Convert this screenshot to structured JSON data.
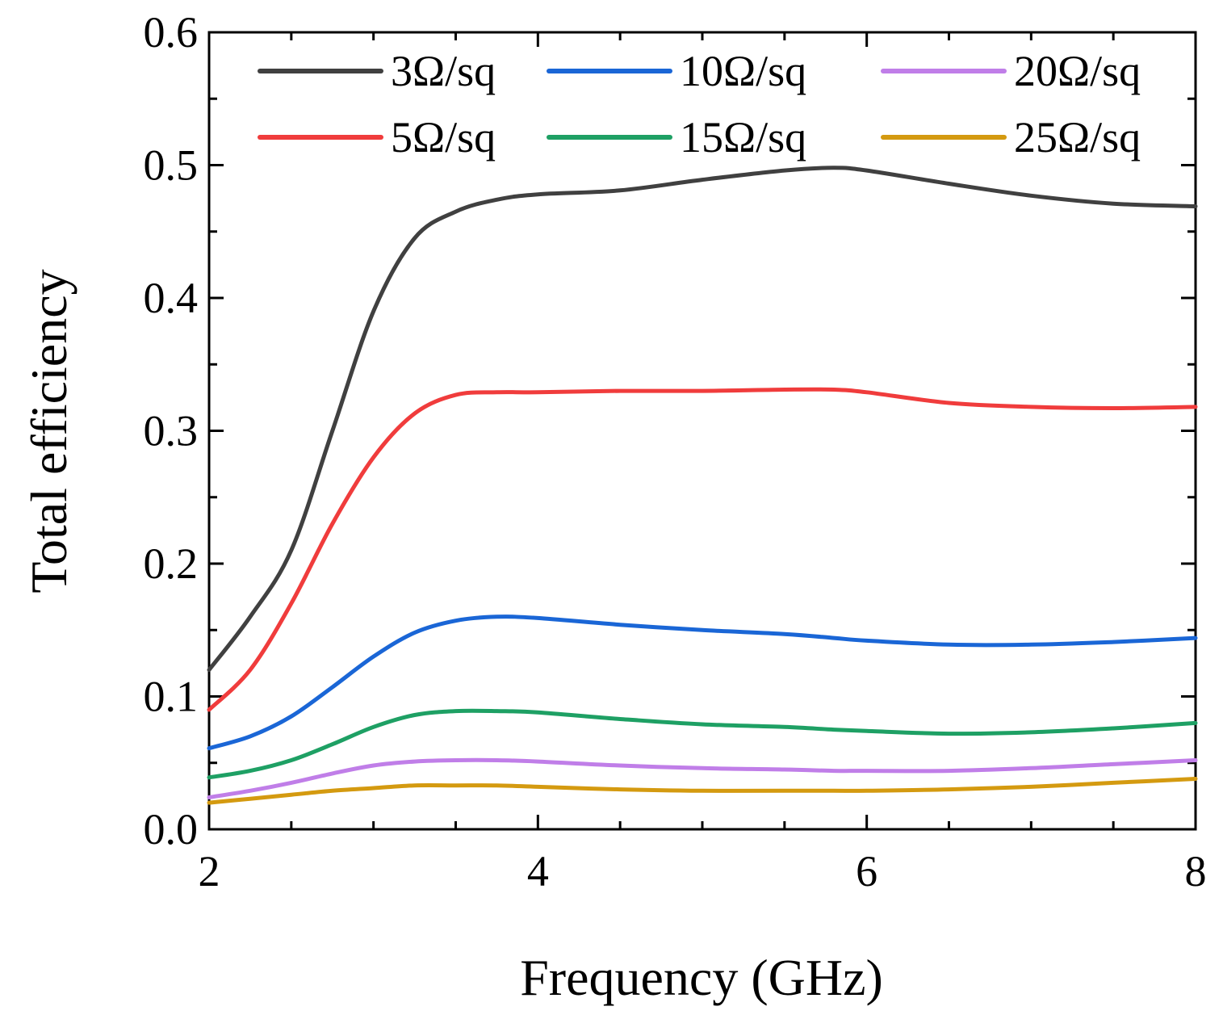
{
  "chart_data": {
    "type": "line",
    "title": "",
    "xlabel": "Frequency (GHz)",
    "ylabel": "Total efficiency",
    "xlim": [
      2,
      8
    ],
    "ylim": [
      0.0,
      0.6
    ],
    "xticks": [
      2,
      4,
      6,
      8
    ],
    "xtick_labels": [
      "2",
      "4",
      "6",
      "8"
    ],
    "yticks": [
      0.0,
      0.1,
      0.2,
      0.3,
      0.4,
      0.5,
      0.6
    ],
    "ytick_labels": [
      "0.0",
      "0.1",
      "0.2",
      "0.3",
      "0.4",
      "0.5",
      "0.6"
    ],
    "grid": false,
    "legend_position": "top",
    "x": [
      2.0,
      2.25,
      2.5,
      2.75,
      3.0,
      3.25,
      3.5,
      3.75,
      4.0,
      4.5,
      5.0,
      5.5,
      5.8,
      6.0,
      6.5,
      7.0,
      7.5,
      8.0
    ],
    "series": [
      {
        "name": "3Ω/sq",
        "color": "#404040",
        "values": [
          0.12,
          0.16,
          0.21,
          0.3,
          0.39,
          0.445,
          0.465,
          0.474,
          0.478,
          0.481,
          0.489,
          0.496,
          0.498,
          0.496,
          0.486,
          0.477,
          0.471,
          0.469
        ]
      },
      {
        "name": "5Ω/sq",
        "color": "#f03c3c",
        "values": [
          0.09,
          0.12,
          0.17,
          0.23,
          0.28,
          0.313,
          0.327,
          0.329,
          0.329,
          0.33,
          0.33,
          0.331,
          0.331,
          0.329,
          0.321,
          0.318,
          0.317,
          0.318
        ]
      },
      {
        "name": "10Ω/sq",
        "color": "#1a66d6",
        "values": [
          0.061,
          0.07,
          0.085,
          0.107,
          0.13,
          0.148,
          0.157,
          0.16,
          0.159,
          0.154,
          0.15,
          0.147,
          0.144,
          0.142,
          0.139,
          0.139,
          0.141,
          0.144
        ]
      },
      {
        "name": "15Ω/sq",
        "color": "#1ea064",
        "values": [
          0.039,
          0.044,
          0.052,
          0.064,
          0.077,
          0.086,
          0.089,
          0.089,
          0.088,
          0.083,
          0.079,
          0.077,
          0.075,
          0.074,
          0.072,
          0.073,
          0.076,
          0.08
        ]
      },
      {
        "name": "20Ω/sq",
        "color": "#c07ee8",
        "values": [
          0.024,
          0.029,
          0.035,
          0.042,
          0.048,
          0.051,
          0.052,
          0.052,
          0.051,
          0.048,
          0.046,
          0.045,
          0.044,
          0.044,
          0.044,
          0.046,
          0.049,
          0.052
        ]
      },
      {
        "name": "25Ω/sq",
        "color": "#d49a10",
        "values": [
          0.02,
          0.023,
          0.026,
          0.029,
          0.031,
          0.033,
          0.033,
          0.033,
          0.032,
          0.03,
          0.029,
          0.029,
          0.029,
          0.029,
          0.03,
          0.032,
          0.035,
          0.038
        ]
      }
    ]
  }
}
